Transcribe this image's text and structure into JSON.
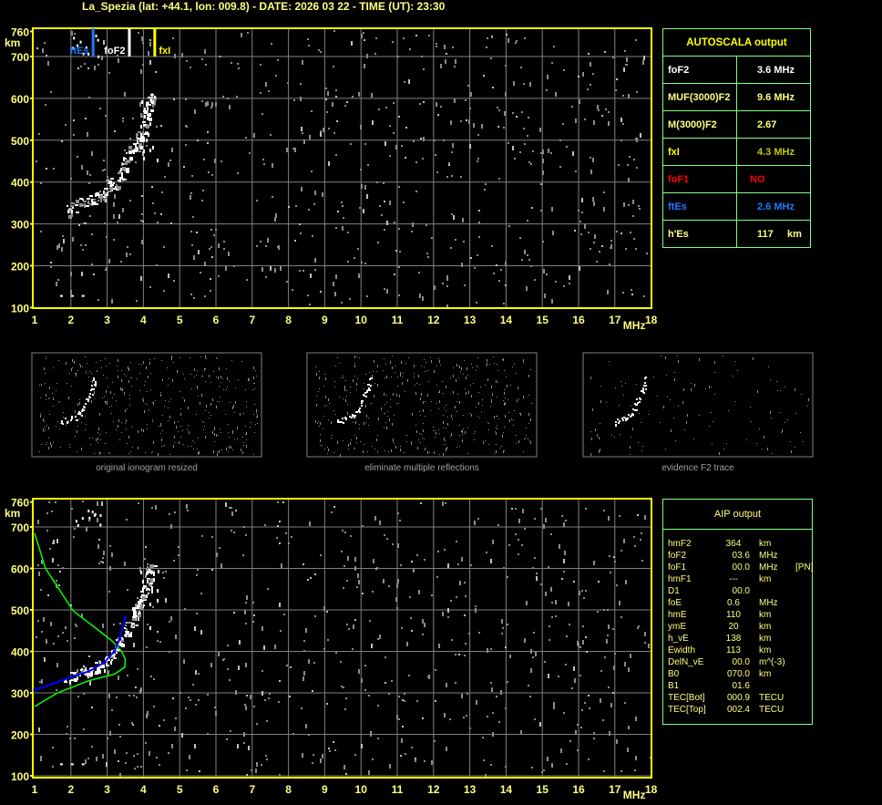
{
  "title": "La_Spezia (lat: +44.1, lon: 009.8) - DATE: 2026 03 22 - TIME (UT): 23:30",
  "colors": {
    "axis": "#ffff00",
    "grid": "#808080",
    "ftEs": "#1e78ff",
    "foF2": "#ffffff",
    "fxI": "#ffff00",
    "profile": "#00ff00",
    "trace": "#0000ff",
    "table_border": "#80ff80",
    "foF1": "#ff0000"
  },
  "chart_data": [
    {
      "type": "scatter",
      "name": "ionogram",
      "xlabel": "MHz",
      "ylabel": "km",
      "xlim": [
        1,
        18
      ],
      "ylim": [
        100,
        760
      ],
      "xticks": [
        "1",
        "2",
        "3",
        "4",
        "5",
        "6",
        "7",
        "8",
        "9",
        "10",
        "11",
        "12",
        "13",
        "14",
        "15",
        "16",
        "17",
        "18"
      ],
      "yticks": [
        "760",
        "700",
        "600",
        "500",
        "400",
        "300",
        "200",
        "100"
      ],
      "grid": true,
      "markers": [
        {
          "label": "ftEs",
          "freq": 2.6,
          "color": "#1e78ff"
        },
        {
          "label": "foF2",
          "freq": 3.6,
          "color": "#ffffff"
        },
        {
          "label": "fxI",
          "freq": 4.3,
          "color": "#ffff00"
        }
      ],
      "f2_trace": [
        [
          1.8,
          330
        ],
        [
          2.1,
          345
        ],
        [
          2.4,
          355
        ],
        [
          2.7,
          365
        ],
        [
          2.9,
          378
        ],
        [
          3.1,
          395
        ],
        [
          3.3,
          420
        ],
        [
          3.45,
          445
        ],
        [
          3.6,
          470
        ],
        [
          3.75,
          495
        ],
        [
          3.9,
          525
        ],
        [
          4.0,
          555
        ],
        [
          4.1,
          585
        ],
        [
          4.15,
          610
        ]
      ],
      "es_trace": [
        [
          1.7,
          130
        ],
        [
          2.0,
          130
        ],
        [
          2.3,
          130
        ]
      ]
    },
    {
      "type": "scatter",
      "name": "ionogram-aip",
      "xlabel": "MHz",
      "ylabel": "km",
      "xlim": [
        1,
        18
      ],
      "ylim": [
        100,
        760
      ],
      "grid": true,
      "profile_curve": [
        [
          1.0,
          685
        ],
        [
          1.3,
          600
        ],
        [
          2.06,
          498
        ],
        [
          2.7,
          455
        ],
        [
          3.14,
          425
        ],
        [
          3.4,
          400
        ],
        [
          3.5,
          381
        ],
        [
          3.49,
          362
        ],
        [
          3.2,
          345
        ],
        [
          2.48,
          329
        ],
        [
          1.63,
          300
        ],
        [
          1.0,
          267
        ]
      ],
      "fitted_trace": [
        [
          1.0,
          307
        ],
        [
          1.5,
          322
        ],
        [
          2.0,
          338
        ],
        [
          2.5,
          352
        ],
        [
          2.9,
          372
        ],
        [
          3.2,
          400
        ],
        [
          3.35,
          430
        ],
        [
          3.5,
          482
        ]
      ]
    }
  ],
  "thumbnails": [
    {
      "caption": "original ionogram resized"
    },
    {
      "caption": "eliminate multiple reflections"
    },
    {
      "caption": "evidence F2 trace"
    }
  ],
  "autoscala": {
    "title": "AUTOSCALA output",
    "rows": [
      {
        "label": "foF2",
        "value": "3.6 MHz",
        "color": "#ffffff",
        "vcolor": "#ffffff"
      },
      {
        "label": "MUF(3000)F2",
        "value": "9.6 MHz",
        "color": "#ffff80",
        "vcolor": "#ffff80"
      },
      {
        "label": "M(3000)F2",
        "value": "2.67",
        "color": "#ffff80",
        "vcolor": "#ffff80"
      },
      {
        "label": "fxI",
        "value": "4.3 MHz",
        "color": "#ffff00",
        "vcolor": "#c8c800"
      },
      {
        "label": "foF1",
        "value": "NO",
        "color": "#ff0000",
        "vcolor": "#ff0000"
      },
      {
        "label": "ftEs",
        "value": "2.6 MHz",
        "color": "#1e78ff",
        "vcolor": "#1e78ff"
      },
      {
        "label": "h'Es",
        "value": "117     km",
        "color": "#ffff80",
        "vcolor": "#ffff80"
      }
    ]
  },
  "aip": {
    "title": "AIP output",
    "rows": [
      [
        "hmF2",
        "364",
        "km",
        ""
      ],
      [
        "foF2",
        "03.6",
        "MHz",
        ""
      ],
      [
        "foF1",
        "00.0",
        "MHz",
        "[PN]"
      ],
      [
        "hmF1",
        "---",
        "km",
        ""
      ],
      [
        "D1",
        "00.0",
        "",
        ""
      ],
      [
        "foE",
        "0.6",
        "MHz",
        ""
      ],
      [
        "hmE",
        "110",
        "km",
        ""
      ],
      [
        "ymE",
        "20",
        "km",
        ""
      ],
      [
        "h_vE",
        "138",
        "km",
        ""
      ],
      [
        "Ewidth",
        "113",
        "km",
        ""
      ],
      [
        "DelN_vE",
        "00.0",
        "m^(-3)",
        ""
      ],
      [
        "B0",
        "070.0",
        "km",
        ""
      ],
      [
        "B1",
        "01.6",
        "",
        ""
      ],
      [
        "TEC[Bot]",
        "000.9",
        "TECU",
        ""
      ],
      [
        "TEC[Top]",
        "002.4",
        "TECU",
        ""
      ]
    ]
  }
}
